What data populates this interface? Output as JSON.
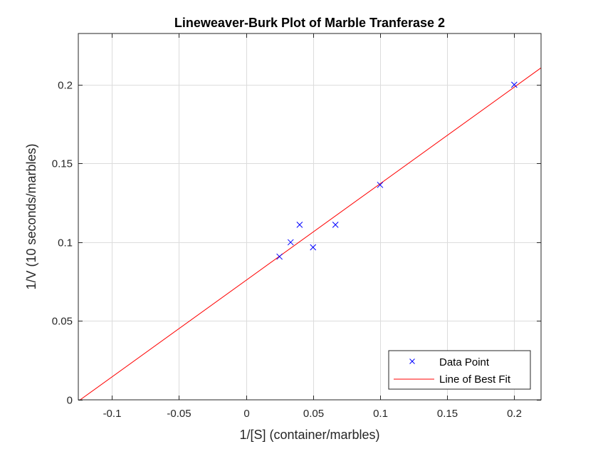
{
  "chart_data": {
    "type": "scatter",
    "title": "Lineweaver-Burk Plot of Marble Tranferase 2",
    "xlabel": "1/[S] (container/marbles)",
    "ylabel": "1/V (10 seconds/marbles)",
    "xlim": [
      -0.125,
      0.22
    ],
    "ylim": [
      0,
      0.2325
    ],
    "xticks": [
      -0.1,
      -0.05,
      0,
      0.05,
      0.1,
      0.15,
      0.2
    ],
    "xtick_labels": [
      "-0.1",
      "-0.05",
      "0",
      "0.05",
      "0.1",
      "0.15",
      "0.2"
    ],
    "yticks": [
      0,
      0.05,
      0.1,
      0.15,
      0.2
    ],
    "ytick_labels": [
      "0",
      "0.05",
      "0.1",
      "0.15",
      "0.2"
    ],
    "grid": true,
    "legend_position": "bottom-right",
    "series": [
      {
        "name": "Data Point",
        "kind": "marker",
        "marker": "x",
        "color": "#0000ff",
        "x": [
          0.025,
          0.0333,
          0.04,
          0.05,
          0.0667,
          0.1,
          0.2
        ],
        "y": [
          0.0909,
          0.1,
          0.1111,
          0.0968,
          0.1111,
          0.1364,
          0.2
        ]
      },
      {
        "name": "Line of Best Fit",
        "kind": "line",
        "color": "#ff0000",
        "x": [
          -0.1236,
          0.22
        ],
        "y": [
          0,
          0.2107
        ]
      }
    ]
  }
}
